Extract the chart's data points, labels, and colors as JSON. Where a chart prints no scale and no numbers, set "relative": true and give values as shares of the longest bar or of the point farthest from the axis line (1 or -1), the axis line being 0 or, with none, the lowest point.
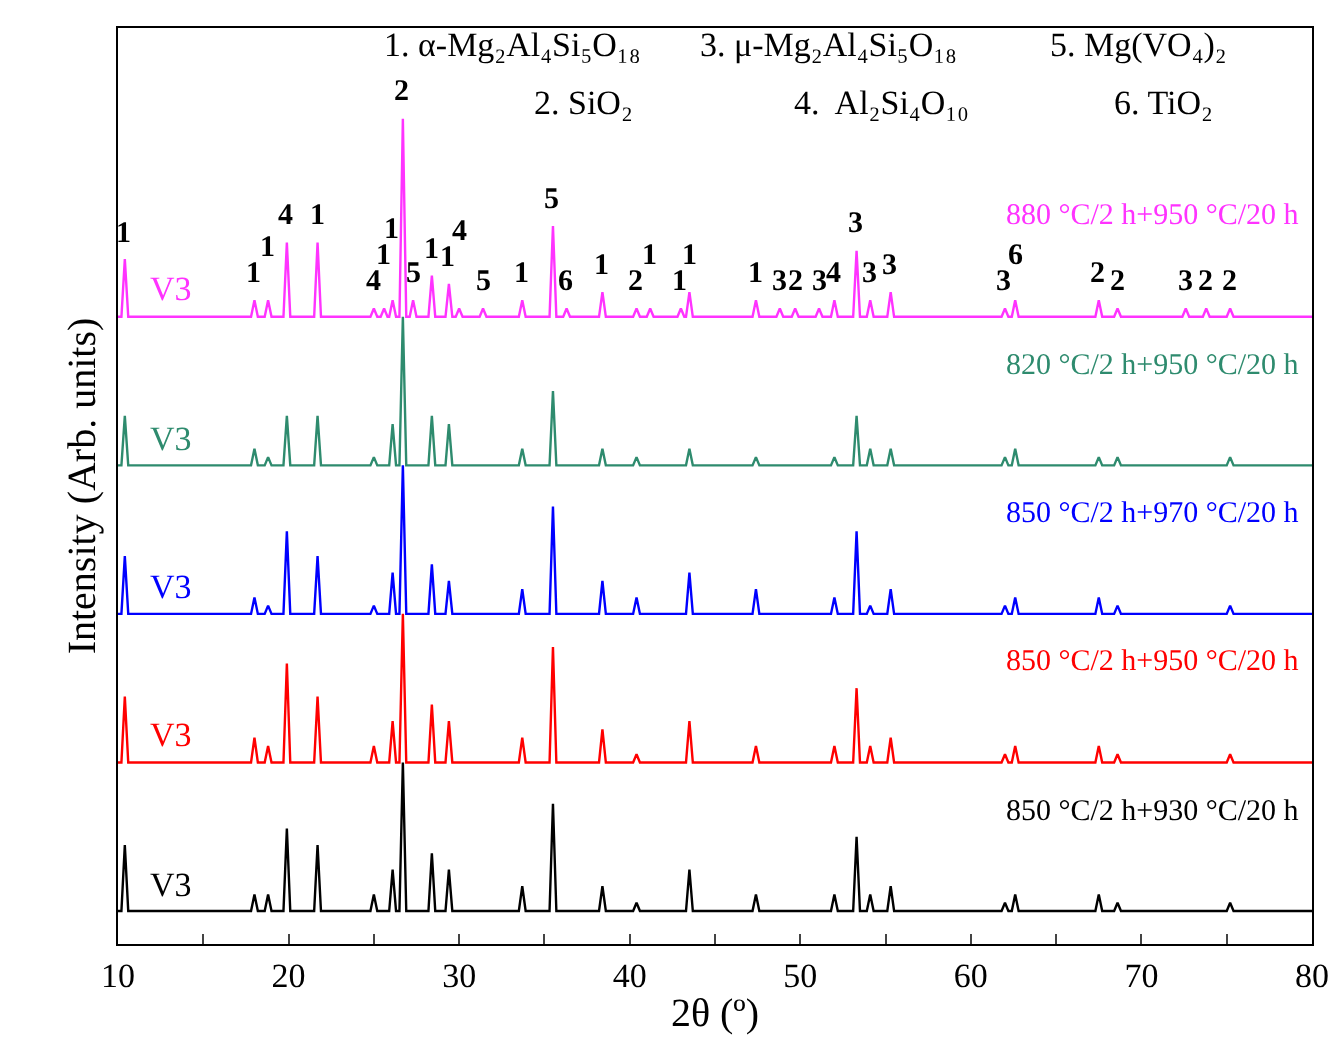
{
  "chart_data": {
    "type": "line",
    "relative": true,
    "xlabel": "2θ (º)",
    "ylabel": "Intensity (Arb. units)",
    "xlim": [
      10,
      80
    ],
    "xticks": [
      10,
      {
        "value": 15,
        "label": null
      },
      20,
      {
        "value": 25,
        "label": null
      },
      30,
      {
        "value": 35,
        "label": null
      },
      40,
      {
        "value": 45,
        "label": null
      },
      50,
      {
        "value": 55,
        "label": null
      },
      60,
      {
        "value": 65,
        "label": null
      },
      70,
      {
        "value": 75,
        "label": null
      },
      80
    ],
    "grid": false,
    "legend": false,
    "marker": "none",
    "line_style": "solid",
    "x": [
      10,
      10.2,
      10.4,
      10.6,
      17.8,
      18.0,
      18.2,
      18.6,
      18.8,
      19.0,
      19.7,
      19.9,
      20.1,
      21.5,
      21.7,
      21.9,
      24.8,
      25.0,
      25.2,
      25.9,
      26.1,
      26.3,
      26.5,
      26.7,
      26.9,
      28.2,
      28.4,
      28.6,
      29.2,
      29.4,
      29.6,
      33.5,
      33.7,
      33.9,
      35.3,
      35.5,
      35.7,
      38.2,
      38.4,
      38.6,
      40.2,
      40.4,
      40.6,
      43.3,
      43.5,
      43.7,
      47.2,
      47.4,
      47.6,
      51.8,
      52.0,
      52.2,
      53.1,
      53.3,
      53.5,
      53.9,
      54.1,
      54.3,
      55.1,
      55.3,
      55.5,
      61.8,
      62.0,
      62.2,
      62.4,
      62.6,
      62.8,
      67.3,
      67.5,
      67.7,
      68.4,
      68.6,
      68.8,
      75.0,
      75.2,
      75.4,
      80
    ],
    "series": [
      {
        "name": "880 °C/2 h+950 °C/20 h",
        "color": "#ff33ff",
        "x": [
          10,
          10.2,
          10.4,
          10.6,
          17.8,
          18.0,
          18.2,
          18.6,
          18.8,
          19.0,
          19.7,
          19.9,
          20.1,
          21.5,
          21.7,
          21.9,
          24.8,
          25.0,
          25.2,
          25.4,
          25.6,
          25.8,
          25.9,
          26.1,
          26.3,
          26.5,
          26.7,
          26.9,
          27.1,
          27.3,
          27.5,
          28.2,
          28.4,
          28.6,
          29.2,
          29.4,
          29.6,
          29.8,
          30.0,
          30.2,
          31.2,
          31.4,
          31.6,
          33.5,
          33.7,
          33.9,
          35.3,
          35.5,
          35.7,
          36.1,
          36.3,
          36.5,
          38.2,
          38.4,
          38.6,
          40.2,
          40.4,
          40.6,
          41.0,
          41.2,
          41.4,
          42.8,
          43.0,
          43.2,
          43.3,
          43.5,
          43.7,
          47.2,
          47.4,
          47.6,
          48.6,
          48.8,
          49.0,
          49.5,
          49.7,
          49.9,
          50.9,
          51.1,
          51.3,
          51.8,
          52.0,
          52.2,
          53.1,
          53.3,
          53.5,
          53.9,
          54.1,
          54.3,
          55.1,
          55.3,
          55.5,
          61.8,
          62.0,
          62.2,
          62.4,
          62.6,
          62.8,
          67.3,
          67.5,
          67.7,
          68.4,
          68.6,
          68.8,
          72.4,
          72.6,
          72.8,
          73.6,
          73.8,
          74.0,
          75.0,
          75.2,
          75.4,
          80
        ],
        "values": [
          0.76,
          0.76,
          0.83,
          0.76,
          0.76,
          0.78,
          0.76,
          0.76,
          0.78,
          0.76,
          0.76,
          0.85,
          0.76,
          0.76,
          0.85,
          0.76,
          0.76,
          0.77,
          0.76,
          0.76,
          0.77,
          0.76,
          0.76,
          0.78,
          0.76,
          0.76,
          1,
          0.76,
          0.76,
          0.78,
          0.76,
          0.76,
          0.81,
          0.76,
          0.76,
          0.8,
          0.76,
          0.76,
          0.77,
          0.76,
          0.76,
          0.77,
          0.76,
          0.76,
          0.78,
          0.76,
          0.76,
          0.87,
          0.76,
          0.76,
          0.77,
          0.76,
          0.76,
          0.79,
          0.76,
          0.76,
          0.77,
          0.76,
          0.76,
          0.77,
          0.76,
          0.76,
          0.77,
          0.76,
          0.76,
          0.79,
          0.76,
          0.76,
          0.78,
          0.76,
          0.76,
          0.77,
          0.76,
          0.76,
          0.77,
          0.76,
          0.76,
          0.77,
          0.76,
          0.76,
          0.78,
          0.76,
          0.76,
          0.84,
          0.76,
          0.76,
          0.78,
          0.76,
          0.76,
          0.79,
          0.76,
          0.76,
          0.77,
          0.76,
          0.76,
          0.78,
          0.76,
          0.76,
          0.78,
          0.76,
          0.76,
          0.77,
          0.76,
          0.76,
          0.77,
          0.76,
          0.76,
          0.77,
          0.76,
          0.76,
          0.77,
          0.76,
          0.76
        ]
      },
      {
        "name": "820 °C/2 h+950 °C/20 h",
        "color": "#2e8b6e",
        "values": [
          0.58,
          0.58,
          0.64,
          0.58,
          0.58,
          0.6,
          0.58,
          0.58,
          0.59,
          0.58,
          0.58,
          0.64,
          0.58,
          0.58,
          0.64,
          0.58,
          0.58,
          0.59,
          0.58,
          0.58,
          0.63,
          0.58,
          0.58,
          0.76,
          0.58,
          0.58,
          0.64,
          0.58,
          0.58,
          0.63,
          0.58,
          0.58,
          0.6,
          0.58,
          0.58,
          0.67,
          0.58,
          0.58,
          0.6,
          0.58,
          0.58,
          0.59,
          0.58,
          0.58,
          0.6,
          0.58,
          0.58,
          0.59,
          0.58,
          0.58,
          0.59,
          0.58,
          0.58,
          0.64,
          0.58,
          0.58,
          0.6,
          0.58,
          0.58,
          0.6,
          0.58,
          0.58,
          0.59,
          0.58,
          0.58,
          0.6,
          0.58,
          0.58,
          0.59,
          0.58,
          0.58,
          0.59,
          0.58,
          0.58,
          0.59,
          0.58,
          0.58
        ]
      },
      {
        "name": "850 °C/2 h+970 °C/20 h",
        "color": "#0000ff",
        "values": [
          0.4,
          0.4,
          0.47,
          0.4,
          0.4,
          0.42,
          0.4,
          0.4,
          0.41,
          0.4,
          0.4,
          0.5,
          0.4,
          0.4,
          0.47,
          0.4,
          0.4,
          0.41,
          0.4,
          0.4,
          0.45,
          0.4,
          0.4,
          0.58,
          0.4,
          0.4,
          0.46,
          0.4,
          0.4,
          0.44,
          0.4,
          0.4,
          0.43,
          0.4,
          0.4,
          0.53,
          0.4,
          0.4,
          0.44,
          0.4,
          0.4,
          0.42,
          0.4,
          0.4,
          0.45,
          0.4,
          0.4,
          0.43,
          0.4,
          0.4,
          0.42,
          0.4,
          0.4,
          0.5,
          0.4,
          0.4,
          0.41,
          0.4,
          0.4,
          0.43,
          0.4,
          0.4,
          0.41,
          0.4,
          0.4,
          0.42,
          0.4,
          0.4,
          0.42,
          0.4,
          0.4,
          0.41,
          0.4,
          0.4,
          0.41,
          0.4,
          0.4
        ]
      },
      {
        "name": "850 °C/2 h+950 °C/20 h",
        "color": "#ff0000",
        "values": [
          0.22,
          0.22,
          0.3,
          0.22,
          0.22,
          0.25,
          0.22,
          0.22,
          0.24,
          0.22,
          0.22,
          0.34,
          0.22,
          0.22,
          0.3,
          0.22,
          0.22,
          0.24,
          0.22,
          0.22,
          0.27,
          0.22,
          0.22,
          0.4,
          0.22,
          0.22,
          0.29,
          0.22,
          0.22,
          0.27,
          0.22,
          0.22,
          0.25,
          0.22,
          0.22,
          0.36,
          0.22,
          0.22,
          0.26,
          0.22,
          0.22,
          0.23,
          0.22,
          0.22,
          0.27,
          0.22,
          0.22,
          0.24,
          0.22,
          0.22,
          0.24,
          0.22,
          0.22,
          0.31,
          0.22,
          0.22,
          0.24,
          0.22,
          0.22,
          0.25,
          0.22,
          0.22,
          0.23,
          0.22,
          0.22,
          0.24,
          0.22,
          0.22,
          0.24,
          0.22,
          0.22,
          0.23,
          0.22,
          0.22,
          0.23,
          0.22,
          0.22
        ]
      },
      {
        "name": "850 °C/2 h+930 °C/20 h",
        "color": "#000000",
        "values": [
          0.04,
          0.04,
          0.12,
          0.04,
          0.04,
          0.06,
          0.04,
          0.04,
          0.06,
          0.04,
          0.04,
          0.14,
          0.04,
          0.04,
          0.12,
          0.04,
          0.04,
          0.06,
          0.04,
          0.04,
          0.09,
          0.04,
          0.04,
          0.22,
          0.04,
          0.04,
          0.11,
          0.04,
          0.04,
          0.09,
          0.04,
          0.04,
          0.07,
          0.04,
          0.04,
          0.17,
          0.04,
          0.04,
          0.07,
          0.04,
          0.04,
          0.05,
          0.04,
          0.04,
          0.09,
          0.04,
          0.04,
          0.06,
          0.04,
          0.04,
          0.06,
          0.04,
          0.04,
          0.13,
          0.04,
          0.04,
          0.06,
          0.04,
          0.04,
          0.07,
          0.04,
          0.04,
          0.05,
          0.04,
          0.04,
          0.06,
          0.04,
          0.04,
          0.06,
          0.04,
          0.04,
          0.05,
          0.04,
          0.04,
          0.05,
          0.04,
          0.04
        ]
      }
    ],
    "annotations": [
      "V3",
      "V3",
      "V3",
      "V3",
      "V3",
      "1. α-Mg₂Al₄Si₅O₁₈",
      "3. μ-Mg₂Al₄Si₅O₁₈",
      "5. Mg(VO₄)₂",
      "2. SiO₂",
      "4.  Al₂Si₄O₁₀",
      "6. TiO₂",
      {
        "text": "1",
        "x": 10.4,
        "y": 0.83
      },
      {
        "text": "1",
        "x": 18.0,
        "y": 0.78
      },
      {
        "text": "1",
        "x": 18.8,
        "y": 0.78
      },
      {
        "text": "4",
        "x": 19.9,
        "y": 0.85
      },
      {
        "text": "1",
        "x": 21.7,
        "y": 0.85
      },
      {
        "text": "4",
        "x": 25.0,
        "y": 0.77
      },
      {
        "text": "1",
        "x": 25.6,
        "y": 0.77
      },
      {
        "text": "1",
        "x": 26.1,
        "y": 0.78
      },
      {
        "text": "2",
        "x": 26.7,
        "y": 1
      },
      {
        "text": "5",
        "x": 27.3,
        "y": 0.78
      },
      {
        "text": "1",
        "x": 28.4,
        "y": 0.81
      },
      {
        "text": "1",
        "x": 29.4,
        "y": 0.8
      },
      {
        "text": "4",
        "x": 30.0,
        "y": 0.77
      },
      {
        "text": "5",
        "x": 31.4,
        "y": 0.77
      },
      {
        "text": "1",
        "x": 33.7,
        "y": 0.78
      },
      {
        "text": "5",
        "x": 35.5,
        "y": 0.87
      },
      {
        "text": "6",
        "x": 36.3,
        "y": 0.77
      },
      {
        "text": "1",
        "x": 38.4,
        "y": 0.79
      },
      {
        "text": "2",
        "x": 40.4,
        "y": 0.77
      },
      {
        "text": "1",
        "x": 41.2,
        "y": 0.77
      },
      {
        "text": "1",
        "x": 43.0,
        "y": 0.77
      },
      {
        "text": "1",
        "x": 43.5,
        "y": 0.79
      },
      {
        "text": "1",
        "x": 47.4,
        "y": 0.78
      },
      {
        "text": "3",
        "x": 48.8,
        "y": 0.77
      },
      {
        "text": "2",
        "x": 49.7,
        "y": 0.77
      },
      {
        "text": "3",
        "x": 51.1,
        "y": 0.77
      },
      {
        "text": "4",
        "x": 52.0,
        "y": 0.78
      },
      {
        "text": "3",
        "x": 53.3,
        "y": 0.84
      },
      {
        "text": "3",
        "x": 54.1,
        "y": 0.78
      },
      {
        "text": "3",
        "x": 55.3,
        "y": 0.79
      },
      {
        "text": "3",
        "x": 62.0,
        "y": 0.77
      },
      {
        "text": "6",
        "x": 62.6,
        "y": 0.78
      },
      {
        "text": "2",
        "x": 67.5,
        "y": 0.78
      },
      {
        "text": "2",
        "x": 68.6,
        "y": 0.77
      },
      {
        "text": "3",
        "x": 72.6,
        "y": 0.77
      },
      {
        "text": "2",
        "x": 73.8,
        "y": 0.77
      },
      {
        "text": "2",
        "x": 75.2,
        "y": 0.77
      }
    ]
  }
}
